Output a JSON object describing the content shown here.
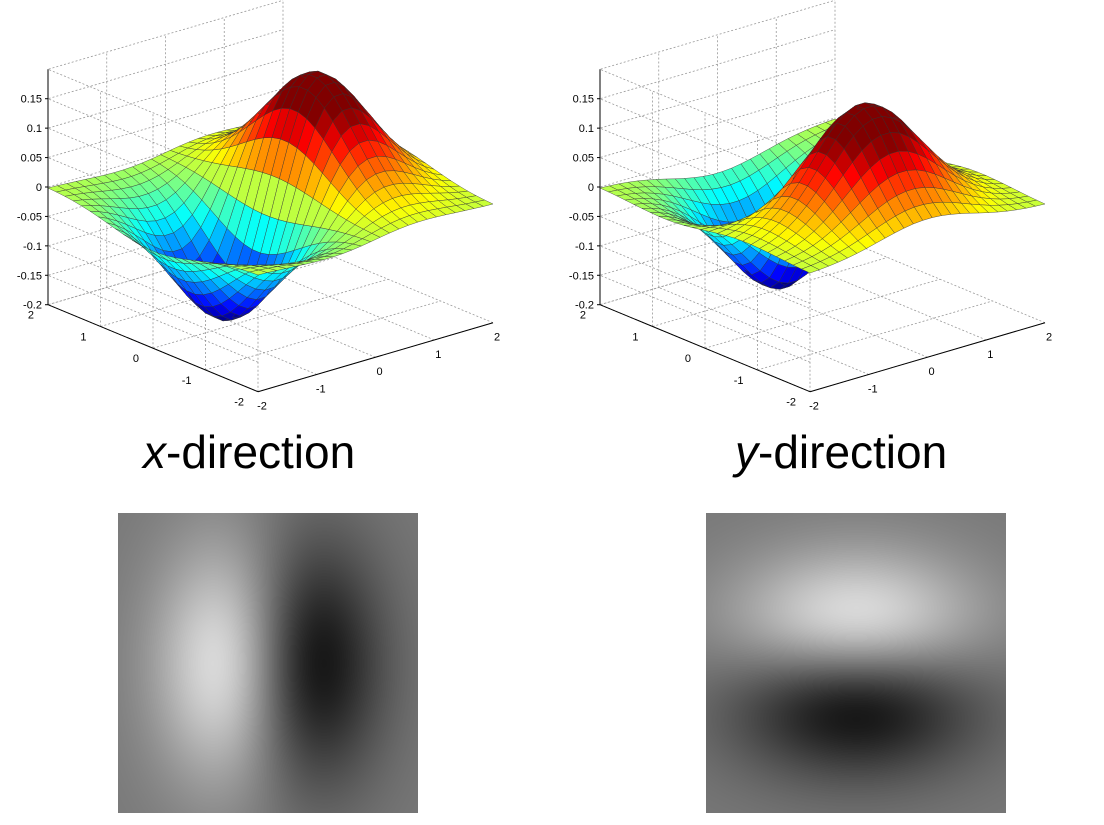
{
  "chart_data": [
    {
      "type": "surface",
      "name_label": "x-direction",
      "function": "derivative of 2D Gaussian along x",
      "x_ticks": [
        "-2",
        "-1",
        "0",
        "1",
        "2"
      ],
      "y_ticks": [
        "-2",
        "-1",
        "0",
        "1",
        "2"
      ],
      "z_ticks": [
        "-0.2",
        "-0.15",
        "-0.1",
        "-0.05",
        "0",
        "0.05",
        "0.1",
        "0.15"
      ],
      "zlim": [
        -0.2,
        0.15
      ],
      "xlim": [
        -2,
        2
      ],
      "ylim": [
        -2,
        2
      ],
      "peak_value": 0.14,
      "trough_value": -0.18,
      "grid": true,
      "colormap": "jet"
    },
    {
      "type": "surface",
      "name_label": "y-direction",
      "function": "derivative of 2D Gaussian along y",
      "x_ticks": [
        "-2",
        "-1",
        "0",
        "1",
        "2"
      ],
      "y_ticks": [
        "-2",
        "-1",
        "0",
        "1",
        "2"
      ],
      "z_ticks": [
        "-0.2",
        "-0.15",
        "-0.1",
        "-0.05",
        "0",
        "0.05",
        "0.1",
        "0.15"
      ],
      "zlim": [
        -0.2,
        0.15
      ],
      "xlim": [
        -2,
        2
      ],
      "ylim": [
        -2,
        2
      ],
      "peak_value": 0.14,
      "trough_value": -0.18,
      "grid": true,
      "colormap": "jet"
    },
    {
      "type": "heatmap",
      "name_label": "x-direction",
      "colormap": "gray",
      "bright_lobe": "left",
      "dark_lobe": "right"
    },
    {
      "type": "heatmap",
      "name_label": "y-direction",
      "colormap": "gray",
      "bright_lobe": "top",
      "dark_lobe": "bottom"
    }
  ],
  "captions": {
    "x": {
      "var": "x",
      "rest": "-direction"
    },
    "y": {
      "var": "y",
      "rest": "-direction"
    }
  }
}
